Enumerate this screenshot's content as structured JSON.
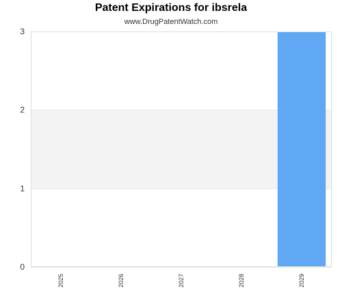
{
  "chart_data": {
    "type": "bar",
    "title": "Patent Expirations for ibsrela",
    "subtitle": "www.DrugPatentWatch.com",
    "categories": [
      "2025",
      "2026",
      "2027",
      "2028",
      "2029"
    ],
    "values": [
      0,
      0,
      0,
      0,
      3
    ],
    "ylim": [
      0,
      3
    ],
    "yticks": [
      0,
      1,
      2,
      3
    ],
    "xlabel": "",
    "ylabel": "",
    "grid": true,
    "legend": "none",
    "colors": {
      "bar": "#60a8f3",
      "band": "#f3f3f3",
      "axis": "#cccccc"
    }
  }
}
